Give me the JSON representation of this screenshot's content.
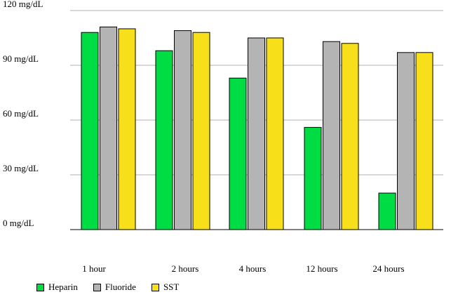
{
  "chart_data": {
    "type": "bar",
    "categories": [
      "1 hour",
      "2 hours",
      "4 hours",
      "12 hours",
      "24 hours"
    ],
    "series": [
      {
        "name": "Heparin",
        "color": "#00dd44",
        "values": [
          108,
          98,
          83,
          56,
          20
        ]
      },
      {
        "name": "Fluoride",
        "color": "#b4b4b4",
        "values": [
          111,
          109,
          105,
          103,
          97
        ]
      },
      {
        "name": "SST",
        "color": "#f7e01a",
        "values": [
          110,
          108,
          105,
          102,
          97
        ]
      }
    ],
    "ylim": [
      0,
      120
    ],
    "yticks": [
      {
        "value": 0,
        "label": "0 mg/dL"
      },
      {
        "value": 30,
        "label": "30 mg/dL"
      },
      {
        "value": 60,
        "label": "60 mg/dL"
      },
      {
        "value": 90,
        "label": "90 mg/dL"
      },
      {
        "value": 120,
        "label": "120 mg/dL"
      }
    ],
    "grid": true,
    "legend_position": "bottom-left"
  }
}
